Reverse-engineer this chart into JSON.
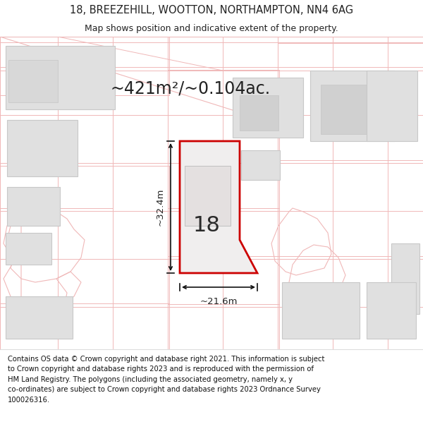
{
  "title_line1": "18, BREEZEHILL, WOOTTON, NORTHAMPTON, NN4 6AG",
  "title_line2": "Map shows position and indicative extent of the property.",
  "area_text": "~421m²/~0.104ac.",
  "dim_width": "~21.6m",
  "dim_height": "~32.4m",
  "label_number": "18",
  "footer_text": "Contains OS data © Crown copyright and database right 2021. This information is subject\nto Crown copyright and database rights 2023 and is reproduced with the permission of\nHM Land Registry. The polygons (including the associated geometry, namely x, y\nco-ordinates) are subject to Crown copyright and database rights 2023 Ordnance Survey\n100026316.",
  "map_bg": "#f8f8f8",
  "grid_color": "#f0b8b8",
  "building_fill": "#e0e0e0",
  "building_edge": "#c8c8c8",
  "outline_color": "#f0b8b8",
  "property_fill": "#f0eeee",
  "property_edge": "#cc0000",
  "title_bg": "#ffffff",
  "footer_bg": "#ffffff",
  "sep_color": "#dddddd",
  "dim_color": "#111111",
  "text_color": "#222222",
  "title_fs": 10.5,
  "subtitle_fs": 9.0,
  "area_fs": 17,
  "label_fs": 22,
  "dim_fs": 9.5,
  "footer_fs": 7.2
}
